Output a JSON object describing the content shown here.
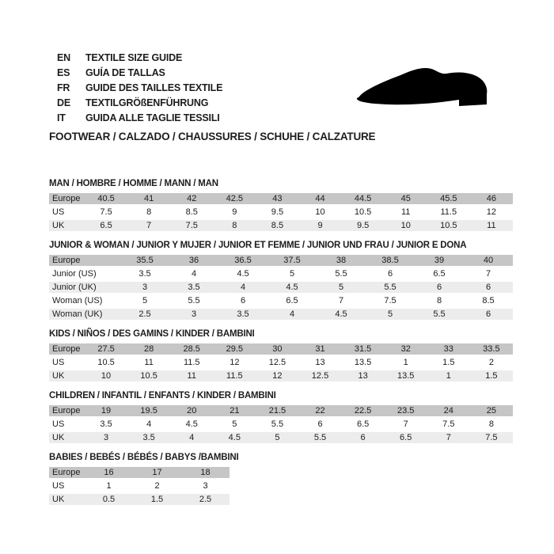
{
  "header": {
    "languages": [
      {
        "code": "EN",
        "text": "TEXTILE SIZE GUIDE"
      },
      {
        "code": "ES",
        "text": "GUÍA DE TALLAS"
      },
      {
        "code": "FR",
        "text": "GUIDE DES TAILLES TEXTILE"
      },
      {
        "code": "DE",
        "text": "TEXTILGRÖßENFÜHRUNG"
      },
      {
        "code": "IT",
        "text": "GUIDA ALLE TAGLIE TESSILI"
      }
    ],
    "category_title": "FOOTWEAR / CALZADO / CHAUSSURES / SCHUHE / CALZATURE",
    "shoe_icon": "shoe-silhouette-icon"
  },
  "colors": {
    "text": "#1d1d1b",
    "table_header_row_bg": "#c6c6c6",
    "table_alt_row_bg": "#ececec",
    "table_white_row_bg": "#ffffff",
    "shoe_icon_fill": "#000000"
  },
  "tables": [
    {
      "title": "MAN / HOMBRE / HOMME / MANN / MAN",
      "rows": [
        {
          "label": "Europe",
          "values": [
            "40.5",
            "41",
            "42",
            "42.5",
            "43",
            "44",
            "44.5",
            "45",
            "45.5",
            "46"
          ]
        },
        {
          "label": "US",
          "values": [
            "7.5",
            "8",
            "8.5",
            "9",
            "9.5",
            "10",
            "10.5",
            "11",
            "11.5",
            "12"
          ]
        },
        {
          "label": "UK",
          "values": [
            "6.5",
            "7",
            "7.5",
            "8",
            "8.5",
            "9",
            "9.5",
            "10",
            "10.5",
            "11"
          ]
        }
      ]
    },
    {
      "title": "JUNIOR & WOMAN / JUNIOR Y MUJER / JUNIOR ET FEMME / JUNIOR UND FRAU / JUNIOR E DONA",
      "rows": [
        {
          "label": "Europe",
          "values": [
            "35.5",
            "36",
            "36.5",
            "37.5",
            "38",
            "38.5",
            "39",
            "40"
          ]
        },
        {
          "label": "Junior (US)",
          "values": [
            "3.5",
            "4",
            "4.5",
            "5",
            "5.5",
            "6",
            "6.5",
            "7"
          ]
        },
        {
          "label": "Junior (UK)",
          "values": [
            "3",
            "3.5",
            "4",
            "4.5",
            "5",
            "5.5",
            "6",
            "6"
          ]
        },
        {
          "label": "Woman (US)",
          "values": [
            "5",
            "5.5",
            "6",
            "6.5",
            "7",
            "7.5",
            "8",
            "8.5"
          ]
        },
        {
          "label": "Woman (UK)",
          "values": [
            "2.5",
            "3",
            "3.5",
            "4",
            "4.5",
            "5",
            "5.5",
            "6"
          ]
        }
      ]
    },
    {
      "title": "KIDS / NIÑOS / DES GAMINS / KINDER / BAMBINI",
      "rows": [
        {
          "label": "Europe",
          "values": [
            "27.5",
            "28",
            "28.5",
            "29.5",
            "30",
            "31",
            "31.5",
            "32",
            "33",
            "33.5"
          ]
        },
        {
          "label": "US",
          "values": [
            "10.5",
            "11",
            "11.5",
            "12",
            "12.5",
            "13",
            "13.5",
            "1",
            "1.5",
            "2"
          ]
        },
        {
          "label": "UK",
          "values": [
            "10",
            "10.5",
            "11",
            "11.5",
            "12",
            "12.5",
            "13",
            "13.5",
            "1",
            "1.5"
          ]
        }
      ]
    },
    {
      "title": "CHILDREN / INFANTIL / ENFANTS / KINDER / BAMBINI",
      "rows": [
        {
          "label": "Europe",
          "values": [
            "19",
            "19.5",
            "20",
            "21",
            "21.5",
            "22",
            "22.5",
            "23.5",
            "24",
            "25"
          ]
        },
        {
          "label": "US",
          "values": [
            "3.5",
            "4",
            "4.5",
            "5",
            "5.5",
            "6",
            "6.5",
            "7",
            "7.5",
            "8"
          ]
        },
        {
          "label": "UK",
          "values": [
            "3",
            "3.5",
            "4",
            "4.5",
            "5",
            "5.5",
            "6",
            "6.5",
            "7",
            "7.5"
          ]
        }
      ]
    },
    {
      "title": "BABIES / BEBÉS / BÉBÉS / BABYS /BAMBINI",
      "rows": [
        {
          "label": "Europe",
          "values": [
            "16",
            "17",
            "18"
          ]
        },
        {
          "label": "US",
          "values": [
            "1",
            "2",
            "3"
          ]
        },
        {
          "label": "UK",
          "values": [
            "0.5",
            "1.5",
            "2.5"
          ]
        }
      ]
    }
  ]
}
